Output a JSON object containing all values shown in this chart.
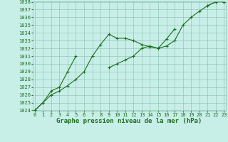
{
  "title": "Graphe pression niveau de la mer (hPa)",
  "x_values": [
    0,
    1,
    2,
    3,
    4,
    5,
    6,
    7,
    8,
    9,
    10,
    11,
    12,
    13,
    14,
    15,
    16,
    17,
    18,
    19,
    20,
    21,
    22,
    23
  ],
  "series1": [
    1024.0,
    1025.0,
    1026.0,
    1026.5,
    1027.2,
    1028.0,
    1029.0,
    1031.0,
    1032.5,
    1033.8,
    1033.3,
    1033.3,
    1033.0,
    1032.5,
    1032.2,
    1032.0,
    1032.3,
    1033.0,
    1035.0,
    1036.0,
    1036.8,
    1037.5,
    1038.0,
    1038.0
  ],
  "series2": [
    1024.0,
    1025.0,
    1026.5,
    1027.0,
    1029.0,
    1031.0,
    null,
    null,
    null,
    1029.5,
    1030.0,
    1030.5,
    1031.0,
    1032.0,
    1032.3,
    1032.0,
    1033.2,
    1034.5,
    null,
    null,
    null,
    1037.5,
    1038.0,
    1038.0
  ],
  "ylim_min": 1024,
  "ylim_max": 1038,
  "xlim_min": 0,
  "xlim_max": 23,
  "yticks": [
    1024,
    1025,
    1026,
    1027,
    1028,
    1029,
    1030,
    1031,
    1032,
    1033,
    1034,
    1035,
    1036,
    1037,
    1038
  ],
  "xticks": [
    0,
    1,
    2,
    3,
    4,
    5,
    6,
    7,
    8,
    9,
    10,
    11,
    12,
    13,
    14,
    15,
    16,
    17,
    18,
    19,
    20,
    21,
    22,
    23
  ],
  "line_color": "#1a6e1a",
  "bg_color": "#c8eee8",
  "grid_color": "#88bfb0",
  "text_color": "#1a6e1a",
  "title_fontsize": 6.5,
  "tick_fontsize": 5.0,
  "linewidth": 0.8,
  "markersize": 2.5,
  "markeredgewidth": 0.8
}
